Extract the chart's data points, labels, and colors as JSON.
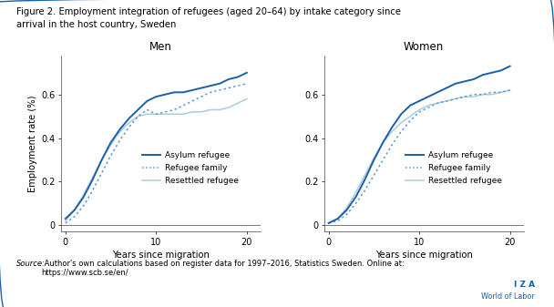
{
  "title_line1": "Figure 2. Employment integration of refugees (aged 20–64) by intake category since",
  "title_line2": "arrival in the host country, Sweden",
  "panel_titles": [
    "Men",
    "Women"
  ],
  "xlabel": "Years since migration",
  "ylabel": "Employment rate (%)",
  "source_italic": "Source:",
  "source_rest": " Author's own calculations based on register data for 1997–2016, Statistics Sweden. Online at:\nhttps://www.scb.se/en/",
  "xlim": [
    -0.5,
    21.5
  ],
  "ylim": [
    -0.03,
    0.78
  ],
  "xticks": [
    0,
    10,
    20
  ],
  "yticks": [
    0.0,
    0.2,
    0.4,
    0.6
  ],
  "legend_labels": [
    "Asylum refugee",
    "Refugee family",
    "Resettled refugee"
  ],
  "line_color_dark": "#1a5fa8",
  "line_color_mid": "#5599cc",
  "line_color_light": "#aaccdd",
  "border_color": "#1a5fa8",
  "iza_color": "#1a5fa8",
  "men": {
    "asylum": {
      "x": [
        0,
        1,
        2,
        3,
        4,
        5,
        6,
        7,
        8,
        9,
        10,
        11,
        12,
        13,
        14,
        15,
        16,
        17,
        18,
        19,
        20
      ],
      "y": [
        0.03,
        0.07,
        0.13,
        0.21,
        0.3,
        0.38,
        0.44,
        0.49,
        0.53,
        0.57,
        0.59,
        0.6,
        0.61,
        0.61,
        0.62,
        0.63,
        0.64,
        0.65,
        0.67,
        0.68,
        0.7
      ]
    },
    "family": {
      "x": [
        0,
        1,
        2,
        3,
        4,
        5,
        6,
        7,
        8,
        9,
        10,
        11,
        12,
        13,
        14,
        15,
        16,
        17,
        18,
        19,
        20
      ],
      "y": [
        0.01,
        0.04,
        0.09,
        0.16,
        0.24,
        0.32,
        0.39,
        0.45,
        0.5,
        0.53,
        0.51,
        0.52,
        0.53,
        0.55,
        0.57,
        0.59,
        0.61,
        0.62,
        0.63,
        0.64,
        0.65
      ]
    },
    "resettled": {
      "x": [
        0,
        1,
        2,
        3,
        4,
        5,
        6,
        7,
        8,
        9,
        10,
        11,
        12,
        13,
        14,
        15,
        16,
        17,
        18,
        19,
        20
      ],
      "y": [
        0.02,
        0.07,
        0.14,
        0.22,
        0.3,
        0.37,
        0.43,
        0.47,
        0.5,
        0.51,
        0.51,
        0.51,
        0.51,
        0.51,
        0.52,
        0.52,
        0.53,
        0.53,
        0.54,
        0.56,
        0.58
      ]
    }
  },
  "women": {
    "asylum": {
      "x": [
        0,
        1,
        2,
        3,
        4,
        5,
        6,
        7,
        8,
        9,
        10,
        11,
        12,
        13,
        14,
        15,
        16,
        17,
        18,
        19,
        20
      ],
      "y": [
        0.01,
        0.03,
        0.07,
        0.13,
        0.21,
        0.3,
        0.38,
        0.45,
        0.51,
        0.55,
        0.57,
        0.59,
        0.61,
        0.63,
        0.65,
        0.66,
        0.67,
        0.69,
        0.7,
        0.71,
        0.73
      ]
    },
    "family": {
      "x": [
        0,
        1,
        2,
        3,
        4,
        5,
        6,
        7,
        8,
        9,
        10,
        11,
        12,
        13,
        14,
        15,
        16,
        17,
        18,
        19,
        20
      ],
      "y": [
        0.01,
        0.02,
        0.05,
        0.1,
        0.16,
        0.23,
        0.3,
        0.37,
        0.43,
        0.48,
        0.52,
        0.54,
        0.56,
        0.57,
        0.58,
        0.59,
        0.6,
        0.6,
        0.61,
        0.61,
        0.62
      ]
    },
    "resettled": {
      "x": [
        0,
        1,
        2,
        3,
        4,
        5,
        6,
        7,
        8,
        9,
        10,
        11,
        12,
        13,
        14,
        15,
        16,
        17,
        18,
        19,
        20
      ],
      "y": [
        0.01,
        0.03,
        0.08,
        0.15,
        0.23,
        0.31,
        0.38,
        0.43,
        0.47,
        0.5,
        0.53,
        0.55,
        0.56,
        0.57,
        0.58,
        0.59,
        0.59,
        0.6,
        0.6,
        0.61,
        0.62
      ]
    }
  }
}
